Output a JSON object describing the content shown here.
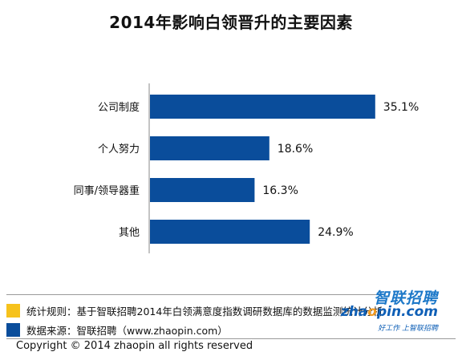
{
  "title": "2014年影响白领晋升的主要因素",
  "chart_data": {
    "type": "bar",
    "orientation": "horizontal",
    "title": "2014年影响白领晋升的主要因素",
    "categories": [
      "公司制度",
      "个人努力",
      "同事/领导器重",
      "其他"
    ],
    "values": [
      35.1,
      18.6,
      16.3,
      24.9
    ],
    "value_labels": [
      "35.1%",
      "18.6%",
      "16.3%",
      "24.9%"
    ],
    "xlim": [
      0,
      40
    ],
    "grid": false,
    "bar_color": "#0a4d9b"
  },
  "footer": {
    "rule_text": "统计规则：基于智联招聘2014年白领满意度指数调研数据库的数据监测统计分析",
    "rule_color": "#f6c21c",
    "source_text": "数据来源：智联招聘（www.zhaopin.com）",
    "source_color": "#0a4d9b",
    "copyright": "Copyright  ©  2014 zhaopin all rights reserved"
  },
  "logo": {
    "cn": "智联招聘",
    "en_a": "zha",
    "en_o": "o",
    "en_b": "pin.com",
    "slogan": "好工作  上智联招聘"
  }
}
